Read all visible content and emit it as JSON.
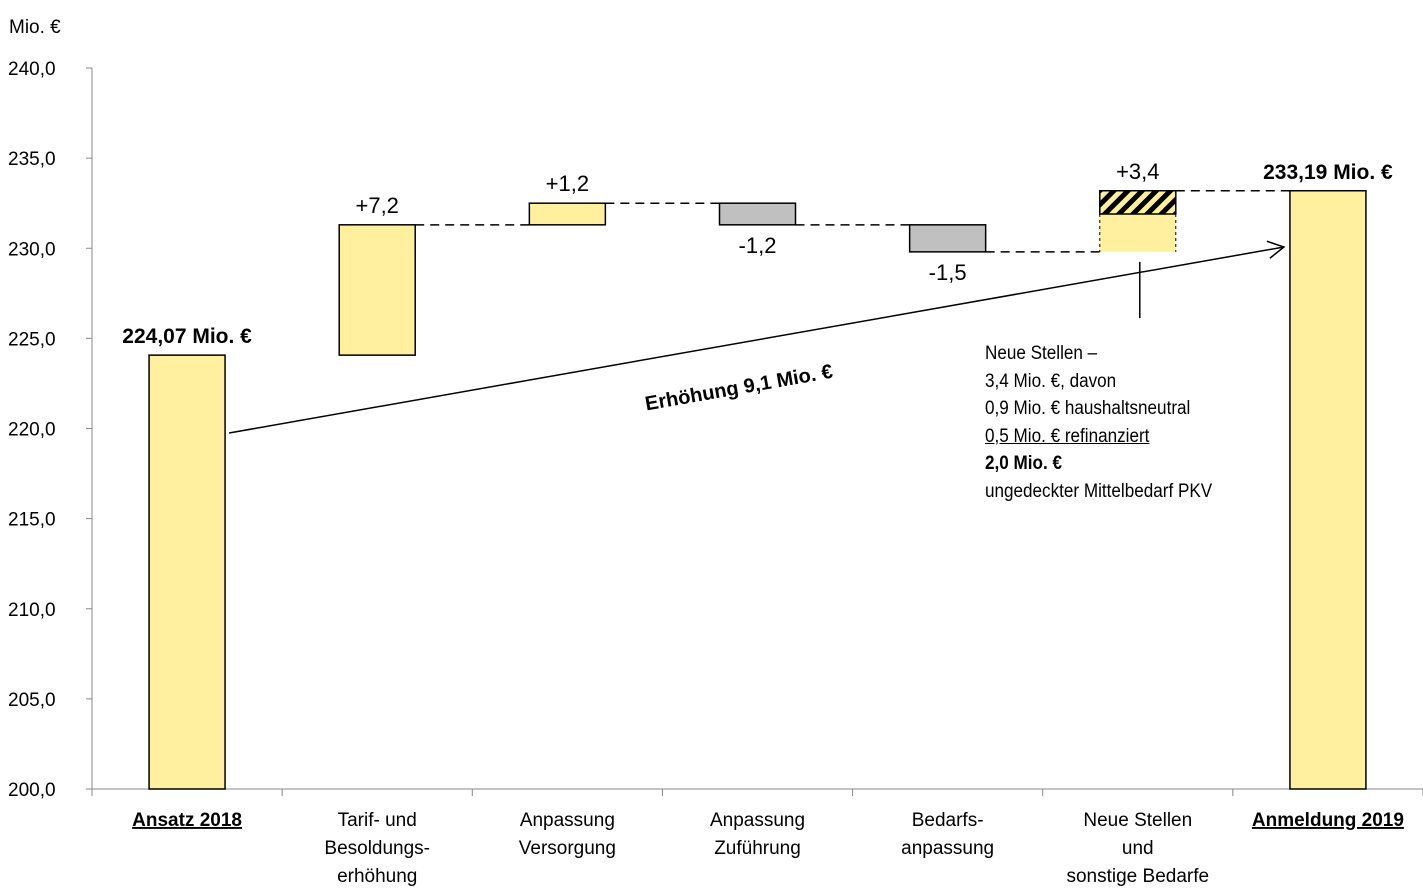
{
  "chart_data": {
    "type": "waterfall",
    "ylabel": "Mio. €",
    "ylim": [
      200,
      240
    ],
    "yticks": [
      "200,0",
      "205,0",
      "210,0",
      "215,0",
      "220,0",
      "225,0",
      "230,0",
      "235,0",
      "240,0"
    ],
    "categories": [
      {
        "lines": [
          "Ansatz 2018"
        ],
        "emphasis": true
      },
      {
        "lines": [
          "Tarif- und",
          "Besoldungs-",
          "erhöhung"
        ],
        "emphasis": false
      },
      {
        "lines": [
          "Anpassung",
          "Versorgung"
        ],
        "emphasis": false
      },
      {
        "lines": [
          "Anpassung",
          "Zuführung"
        ],
        "emphasis": false
      },
      {
        "lines": [
          "Bedarfs-",
          "anpassung"
        ],
        "emphasis": false
      },
      {
        "lines": [
          "Neue Stellen",
          "und",
          "sonstige Bedarfe"
        ],
        "emphasis": false
      },
      {
        "lines": [
          "Anmeldung 2019"
        ],
        "emphasis": true
      }
    ],
    "bars": [
      {
        "kind": "total",
        "bottom": 200,
        "top": 224.07,
        "color": "#fff0a0",
        "label": "224,07 Mio. €",
        "label_pos": "above",
        "bold": true
      },
      {
        "kind": "increase",
        "bottom": 224.07,
        "top": 231.3,
        "color": "#fff0a0",
        "label": "+7,2",
        "label_pos": "above",
        "bold": false
      },
      {
        "kind": "increase",
        "bottom": 231.3,
        "top": 232.5,
        "color": "#fff0a0",
        "label": "+1,2",
        "label_pos": "above",
        "bold": false
      },
      {
        "kind": "decrease",
        "bottom": 231.3,
        "top": 232.5,
        "color": "#c0c0c0",
        "label": "-1,2",
        "label_pos": "below",
        "bold": false
      },
      {
        "kind": "decrease",
        "bottom": 229.8,
        "top": 231.3,
        "color": "#c0c0c0",
        "label": "-1,5",
        "label_pos": "below",
        "bold": false
      },
      {
        "kind": "increase",
        "bottom": 229.8,
        "top": 233.19,
        "split": 231.9,
        "color": "#fff0a0",
        "label": "+3,4",
        "label_pos": "above",
        "bold": false
      },
      {
        "kind": "total",
        "bottom": 200,
        "top": 233.19,
        "color": "#fff0a0",
        "label": "233,19 Mio. €",
        "label_pos": "above",
        "bold": true
      }
    ],
    "arrow_label": "Erhöhung 9,1 Mio. €",
    "annotation": [
      {
        "text": "Neue Stellen –",
        "style": ""
      },
      {
        "text": "3,4 Mio. €, davon",
        "style": ""
      },
      {
        "text": "0,9 Mio. € haushaltsneutral",
        "style": ""
      },
      {
        "text": "0,5 Mio. € refinanziert",
        "style": "ul"
      },
      {
        "text": "2,0 Mio. €",
        "style": "bold"
      },
      {
        "text": "ungedeckter Mittelbedarf PKV",
        "style": ""
      }
    ],
    "grid": false,
    "legend": "none"
  }
}
